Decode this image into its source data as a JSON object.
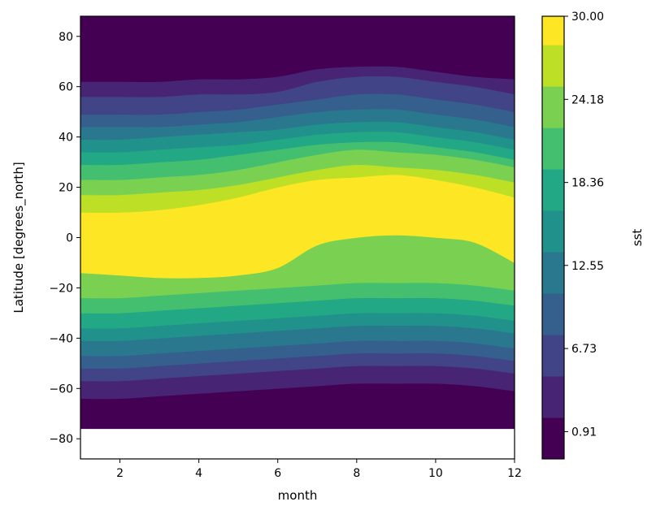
{
  "chart_data": {
    "type": "contour",
    "xlabel": "month",
    "ylabel": "Latitude [degrees_north]",
    "colorbar_label": "sst",
    "xlim": [
      1,
      12
    ],
    "ylim": [
      -88,
      88
    ],
    "x_ticks": [
      2,
      4,
      6,
      8,
      10,
      12
    ],
    "y_ticks": [
      -80,
      -60,
      -40,
      -20,
      0,
      20,
      40,
      60,
      80
    ],
    "data_lat_min": -76,
    "levels": [
      -1.0,
      1.9,
      4.8,
      7.7,
      10.6,
      13.5,
      16.4,
      19.3,
      22.2,
      25.1,
      28.0,
      30.0
    ],
    "colorbar_range": [
      -1.0,
      30.0
    ],
    "colorbar_ticks": [
      0.91,
      6.73,
      12.55,
      18.36,
      24.18,
      30.0
    ],
    "colorbar_tick_labels": [
      "0.91",
      "6.73",
      "12.55",
      "18.36",
      "24.18",
      "30.00"
    ],
    "colors": [
      "#440154",
      "#482475",
      "#414487",
      "#355f8d",
      "#2a788e",
      "#21918c",
      "#22a884",
      "#44bf70",
      "#7ad151",
      "#bddf26",
      "#fde725"
    ],
    "boundary_months": [
      1,
      2,
      3,
      4,
      5,
      6,
      7,
      8,
      9,
      10,
      11,
      12
    ],
    "boundaries_lat": [
      [
        -64,
        -64,
        -63,
        -62,
        -61,
        -60,
        -59,
        -58,
        -58,
        -58,
        -59,
        -61
      ],
      [
        -57,
        -57,
        -56,
        -55,
        -54,
        -53,
        -52,
        -51,
        -51,
        -51,
        -52,
        -54
      ],
      [
        -52,
        -52,
        -51,
        -50,
        -49,
        -48,
        -47,
        -46,
        -46,
        -46,
        -47,
        -49
      ],
      [
        -47,
        -47,
        -46,
        -45,
        -44,
        -43,
        -42,
        -41,
        -41,
        -41,
        -42,
        -44
      ],
      [
        -41,
        -41,
        -40,
        -39,
        -38,
        -37,
        -36,
        -35,
        -35,
        -35,
        -36,
        -38
      ],
      [
        -36,
        -36,
        -35,
        -34,
        -33,
        -32,
        -31,
        -30,
        -30,
        -30,
        -31,
        -33
      ],
      [
        -30,
        -30,
        -29,
        -28,
        -27,
        -26,
        -25,
        -24,
        -24,
        -24,
        -25,
        -27
      ],
      [
        -24,
        -24,
        -23,
        -22,
        -21,
        -20,
        -19,
        -18,
        -18,
        -18,
        -19,
        -21
      ],
      [
        -14,
        -15,
        -16,
        -16,
        -15,
        -12,
        -3,
        0,
        1,
        0,
        -2,
        -10
      ],
      [
        10,
        10,
        11,
        13,
        16,
        20,
        23,
        24,
        25,
        23,
        20,
        16
      ],
      [
        17,
        17,
        18,
        19,
        21,
        24,
        27,
        29,
        28,
        27,
        25,
        22
      ],
      [
        23,
        23,
        24,
        25,
        27,
        30,
        33,
        35,
        34,
        33,
        31,
        28
      ],
      [
        29,
        29,
        30,
        31,
        33,
        35,
        37,
        38,
        38,
        36,
        34,
        31
      ],
      [
        34,
        34,
        35,
        36,
        37,
        39,
        41,
        42,
        42,
        40,
        38,
        35
      ],
      [
        39,
        39,
        40,
        41,
        42,
        43,
        45,
        46,
        46,
        44,
        42,
        39
      ],
      [
        44,
        44,
        44,
        45,
        46,
        48,
        50,
        51,
        51,
        49,
        47,
        44
      ],
      [
        49,
        49,
        49,
        50,
        51,
        53,
        55,
        57,
        57,
        55,
        53,
        50
      ],
      [
        56,
        56,
        56,
        57,
        57,
        58,
        62,
        64,
        64,
        62,
        60,
        57
      ],
      [
        62,
        62,
        62,
        63,
        63,
        64,
        67,
        68,
        68,
        66,
        64,
        63
      ],
      [
        67,
        67,
        67,
        67,
        68,
        70,
        73,
        75,
        75,
        73,
        70,
        68
      ]
    ],
    "band_colors": [
      0,
      1,
      2,
      3,
      4,
      5,
      6,
      7,
      8,
      10,
      9,
      8,
      7,
      6,
      5,
      4,
      3,
      2,
      1,
      0,
      0
    ]
  }
}
